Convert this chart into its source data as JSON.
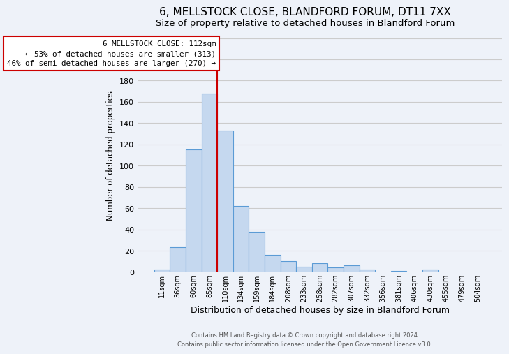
{
  "title": "6, MELLSTOCK CLOSE, BLANDFORD FORUM, DT11 7XX",
  "subtitle": "Size of property relative to detached houses in Blandford Forum",
  "xlabel": "Distribution of detached houses by size in Blandford Forum",
  "ylabel": "Number of detached properties",
  "bin_labels": [
    "11sqm",
    "36sqm",
    "60sqm",
    "85sqm",
    "110sqm",
    "134sqm",
    "159sqm",
    "184sqm",
    "208sqm",
    "233sqm",
    "258sqm",
    "282sqm",
    "307sqm",
    "332sqm",
    "356sqm",
    "381sqm",
    "406sqm",
    "430sqm",
    "455sqm",
    "479sqm",
    "504sqm"
  ],
  "bar_values": [
    2,
    23,
    115,
    168,
    133,
    62,
    38,
    16,
    10,
    5,
    8,
    4,
    6,
    2,
    0,
    1,
    0,
    2,
    0,
    0,
    0
  ],
  "bar_color": "#c5d8ef",
  "bar_edge_color": "#5b9bd5",
  "bar_edge_width": 0.8,
  "vline_idx": 3.5,
  "vline_color": "#cc0000",
  "vline_label_title": "6 MELLSTOCK CLOSE: 112sqm",
  "vline_label_line1": "← 53% of detached houses are smaller (313)",
  "vline_label_line2": "46% of semi-detached houses are larger (270) →",
  "box_color": "#cc0000",
  "ylim": [
    0,
    220
  ],
  "yticks": [
    0,
    20,
    40,
    60,
    80,
    100,
    120,
    140,
    160,
    180,
    200,
    220
  ],
  "grid_color": "#cccccc",
  "title_fontsize": 11,
  "subtitle_fontsize": 9.5,
  "xlabel_fontsize": 9,
  "ylabel_fontsize": 8.5,
  "tick_fontsize": 7,
  "footer_line1": "Contains HM Land Registry data © Crown copyright and database right 2024.",
  "footer_line2": "Contains public sector information licensed under the Open Government Licence v3.0.",
  "background_color": "#eef2f9"
}
